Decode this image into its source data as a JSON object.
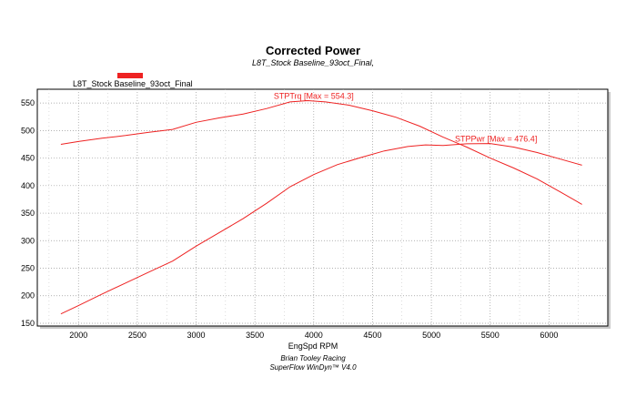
{
  "chart_data": {
    "type": "line",
    "title": "Corrected Power",
    "subtitle": "L8T_Stock Baseline_93oct_Final,",
    "legend": {
      "label": "L8T_Stock Baseline_93oct_Final",
      "color": "#ee2222",
      "placement": "top-left"
    },
    "xlabel": "EngSpd RPM",
    "ylabel": "",
    "xlim": [
      1650,
      6500
    ],
    "ylim": [
      145,
      575
    ],
    "x_ticks": [
      "2000",
      "2500",
      "3000",
      "3500",
      "4000",
      "4500",
      "5000",
      "5500",
      "6000"
    ],
    "x_tick_values": [
      2000,
      2500,
      3000,
      3500,
      4000,
      4500,
      5000,
      5500,
      6000
    ],
    "y_ticks": [
      "150",
      "200",
      "250",
      "300",
      "350",
      "400",
      "450",
      "500",
      "550"
    ],
    "y_tick_values": [
      150,
      200,
      250,
      300,
      350,
      400,
      450,
      500,
      550
    ],
    "grid": true,
    "series": [
      {
        "name": "STPTrq",
        "label": "STPTrq [Max = 554.3]",
        "color": "#ee2222",
        "x": [
          1850,
          2000,
          2200,
          2400,
          2600,
          2800,
          3000,
          3200,
          3400,
          3600,
          3800,
          3950,
          4100,
          4300,
          4500,
          4700,
          4900,
          5100,
          5300,
          5500,
          5700,
          5900,
          6100,
          6280
        ],
        "values": [
          475,
          480,
          486,
          491,
          497,
          502,
          515,
          523,
          530,
          540,
          552,
          554.3,
          552,
          546,
          536,
          524,
          508,
          488,
          470,
          450,
          432,
          412,
          388,
          366
        ]
      },
      {
        "name": "STPPwr",
        "label": "STPPwr [Max = 476.4]",
        "color": "#ee2222",
        "x": [
          1850,
          2000,
          2200,
          2400,
          2600,
          2800,
          3000,
          3200,
          3400,
          3600,
          3800,
          4000,
          4200,
          4400,
          4600,
          4800,
          4950,
          5100,
          5300,
          5500,
          5700,
          5900,
          6100,
          6280
        ],
        "values": [
          167,
          182,
          203,
          223,
          243,
          263,
          290,
          315,
          340,
          368,
          398,
          420,
          438,
          451,
          463,
          471,
          474,
          473,
          476,
          476.4,
          470,
          460,
          448,
          437
        ]
      }
    ],
    "annotations": [
      {
        "text": "STPTrq [Max = 554.3]",
        "x": 4000,
        "y": 558
      },
      {
        "text": "STPPwr [Max = 476.4]",
        "x": 5550,
        "y": 480
      }
    ],
    "footer": [
      "Brian Tooley Racing",
      "SuperFlow WinDyn™  V4.0"
    ]
  }
}
